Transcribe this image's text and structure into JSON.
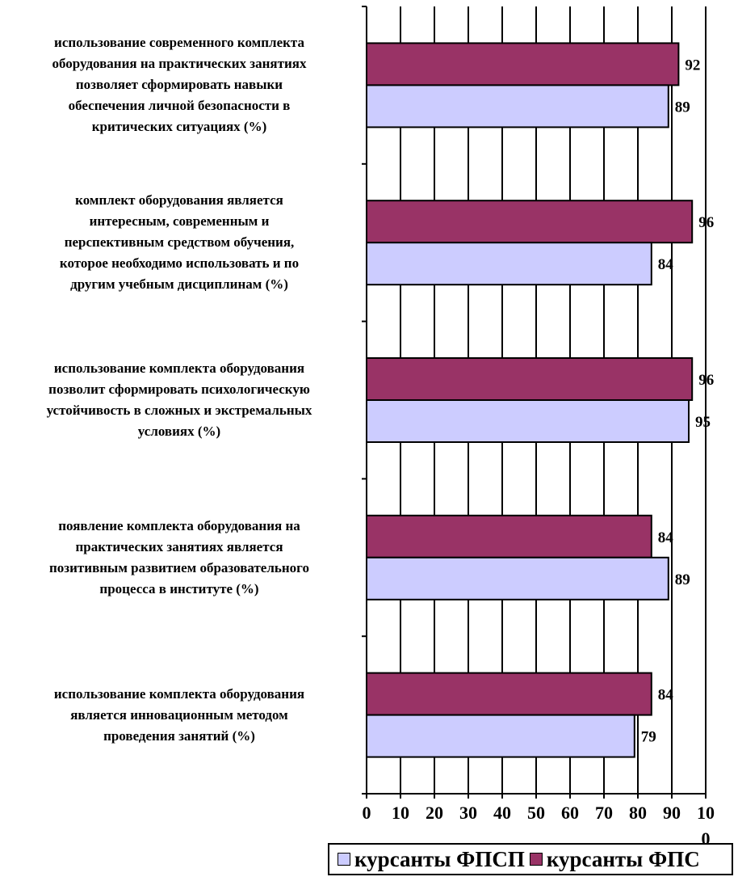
{
  "chart_data": {
    "type": "bar",
    "orientation": "horizontal",
    "categories": [
      "использование современного комплекта оборудования на практических занятиях позволяет сформировать навыки обеспечения личной безопасности в критических ситуациях (%)",
      "комплект оборудования является интересным, современным и перспективным средством обучения, которое необходимо использовать и по другим учебным дисциплинам (%)",
      "использование комплекта оборудования позволит сформировать психологическую устойчивость в сложных и экстремальных условиях (%)",
      "появление комплекта оборудования на практических занятиях является позитивным развитием образовательного процесса в институте (%)",
      "использование комплекта оборудования является инновационным методом проведения занятий (%)"
    ],
    "category_lines": [
      [
        "использование современного комплекта",
        "оборудования на практических занятиях",
        "позволяет сформировать навыки",
        "обеспечения личной безопасности в",
        "критических ситуациях (%)"
      ],
      [
        "комплект оборудования  является",
        "интересным, современным и",
        "перспективным средством обучения,",
        "которое необходимо использовать и по",
        "другим учебным дисциплинам (%)"
      ],
      [
        "использование комплекта оборудования",
        "позволит сформировать психологическую",
        "устойчивость в сложных и экстремальных",
        "условиях (%)"
      ],
      [
        "появление комплекта оборудования на",
        "практических занятиях является",
        "позитивным развитием образовательного",
        "процесса в институте (%)"
      ],
      [
        "использование комплекта оборудования",
        "является инновационным методом",
        "проведения занятий  (%)"
      ]
    ],
    "series": [
      {
        "name": "курсанты ФПС",
        "values": [
          92,
          96,
          96,
          84,
          84
        ],
        "color": "#993366"
      },
      {
        "name": "курсанты ФПСП",
        "values": [
          89,
          84,
          95,
          89,
          79
        ],
        "color": "#ccccff"
      }
    ],
    "data_labels": {
      "курсанты ФПС": [
        "92",
        "96",
        "96",
        "84",
        "84"
      ],
      "курсанты ФПСП": [
        "89",
        "84",
        "95",
        "89",
        "79"
      ]
    },
    "x_ticks": [
      "0",
      "10",
      "20",
      "30",
      "40",
      "50",
      "60",
      "70",
      "80",
      "90",
      "10"
    ],
    "x_tick_last_extra": "0",
    "xlim": [
      0,
      100
    ],
    "grid": true,
    "legend_position": "bottom-right",
    "legend": [
      {
        "name": "курсанты ФПСП",
        "color": "#ccccff"
      },
      {
        "name": "курсанты ФПС",
        "color": "#993366"
      }
    ]
  }
}
